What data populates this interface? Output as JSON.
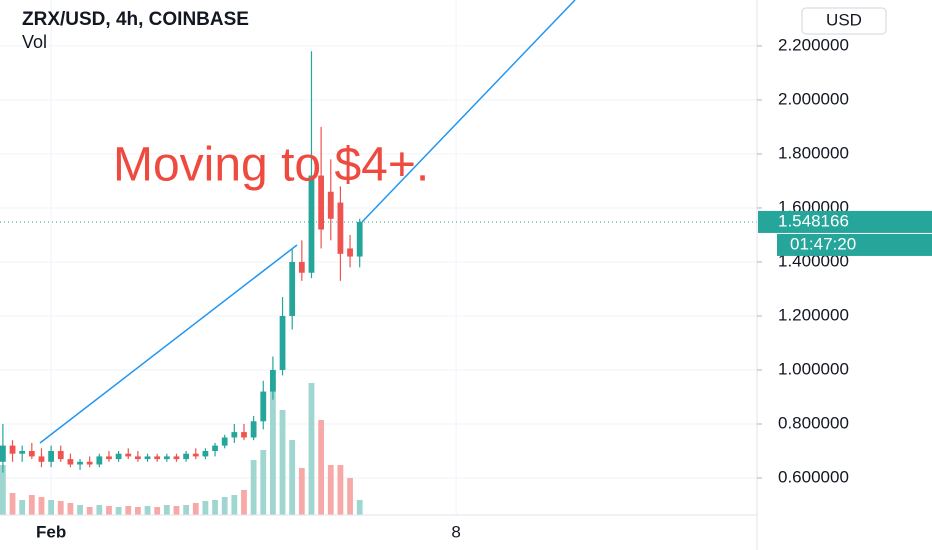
{
  "chart_data": {
    "type": "candlestick",
    "title": "ZRX/USD, 4h, COINBASE",
    "subtitle": "Vol",
    "currency_button": "USD",
    "annotation": "Moving to $4+.",
    "last_price": {
      "value": 1.548166,
      "label": "1.548166"
    },
    "countdown": "01:47:20",
    "up_color": "#26a69a",
    "down_color": "#ef5350",
    "up_volume_color": "#9fd6d0",
    "down_volume_color": "#f7a9a7",
    "trendline_color": "#2196f3",
    "grid": true,
    "ylim": [
      0.463,
      2.37
    ],
    "yticks": [
      {
        "value": 0.6,
        "label": "0.600000"
      },
      {
        "value": 0.8,
        "label": "0.800000"
      },
      {
        "value": 1.0,
        "label": "1.000000"
      },
      {
        "value": 1.2,
        "label": "1.200000"
      },
      {
        "value": 1.4,
        "label": "1.400000"
      },
      {
        "value": 1.6,
        "label": "1.600000"
      },
      {
        "value": 1.8,
        "label": "1.800000"
      },
      {
        "value": 2.0,
        "label": "2.000000"
      },
      {
        "value": 2.2,
        "label": "2.200000"
      }
    ],
    "xlim": [
      -0.3,
      78.2
    ],
    "xticks": [
      {
        "value": 5,
        "label": "Feb"
      },
      {
        "value": 47,
        "label": "8"
      }
    ],
    "vlim": [
      0,
      1030
    ],
    "open": [
      0.66,
      0.72,
      0.69,
      0.7,
      0.68,
      0.66,
      0.7,
      0.67,
      0.65,
      0.66,
      0.65,
      0.68,
      0.67,
      0.69,
      0.68,
      0.67,
      0.68,
      0.67,
      0.68,
      0.67,
      0.69,
      0.68,
      0.7,
      0.72,
      0.75,
      0.77,
      0.75,
      0.81,
      0.92,
      1.0,
      1.2,
      1.4,
      1.36,
      1.72,
      1.66,
      1.62,
      1.45,
      1.42
    ],
    "high": [
      0.8,
      0.74,
      0.72,
      0.73,
      0.71,
      0.72,
      0.72,
      0.69,
      0.67,
      0.68,
      0.69,
      0.7,
      0.7,
      0.71,
      0.7,
      0.69,
      0.69,
      0.69,
      0.69,
      0.7,
      0.71,
      0.71,
      0.73,
      0.76,
      0.8,
      0.8,
      0.83,
      0.96,
      1.05,
      1.27,
      1.45,
      1.48,
      2.18,
      1.9,
      1.78,
      1.68,
      1.5,
      1.56
    ],
    "low": [
      0.62,
      0.66,
      0.66,
      0.67,
      0.64,
      0.64,
      0.66,
      0.64,
      0.63,
      0.64,
      0.64,
      0.66,
      0.66,
      0.67,
      0.66,
      0.66,
      0.66,
      0.66,
      0.66,
      0.66,
      0.67,
      0.67,
      0.68,
      0.71,
      0.73,
      0.74,
      0.74,
      0.78,
      0.89,
      0.98,
      1.15,
      1.33,
      1.34,
      1.45,
      1.48,
      1.33,
      1.38,
      1.38
    ],
    "close": [
      0.72,
      0.69,
      0.7,
      0.68,
      0.66,
      0.7,
      0.67,
      0.65,
      0.66,
      0.65,
      0.68,
      0.67,
      0.69,
      0.68,
      0.67,
      0.68,
      0.67,
      0.68,
      0.67,
      0.69,
      0.68,
      0.7,
      0.72,
      0.75,
      0.77,
      0.75,
      0.81,
      0.92,
      1.0,
      1.2,
      1.4,
      1.36,
      1.72,
      1.52,
      1.56,
      1.43,
      1.42,
      1.548166
    ],
    "volume": [
      100,
      44,
      30,
      40,
      36,
      30,
      28,
      24,
      20,
      16,
      20,
      18,
      16,
      18,
      16,
      18,
      16,
      20,
      18,
      20,
      24,
      28,
      30,
      36,
      40,
      50,
      110,
      130,
      270,
      210,
      150,
      94,
      264,
      190,
      100,
      100,
      74,
      30
    ]
  }
}
